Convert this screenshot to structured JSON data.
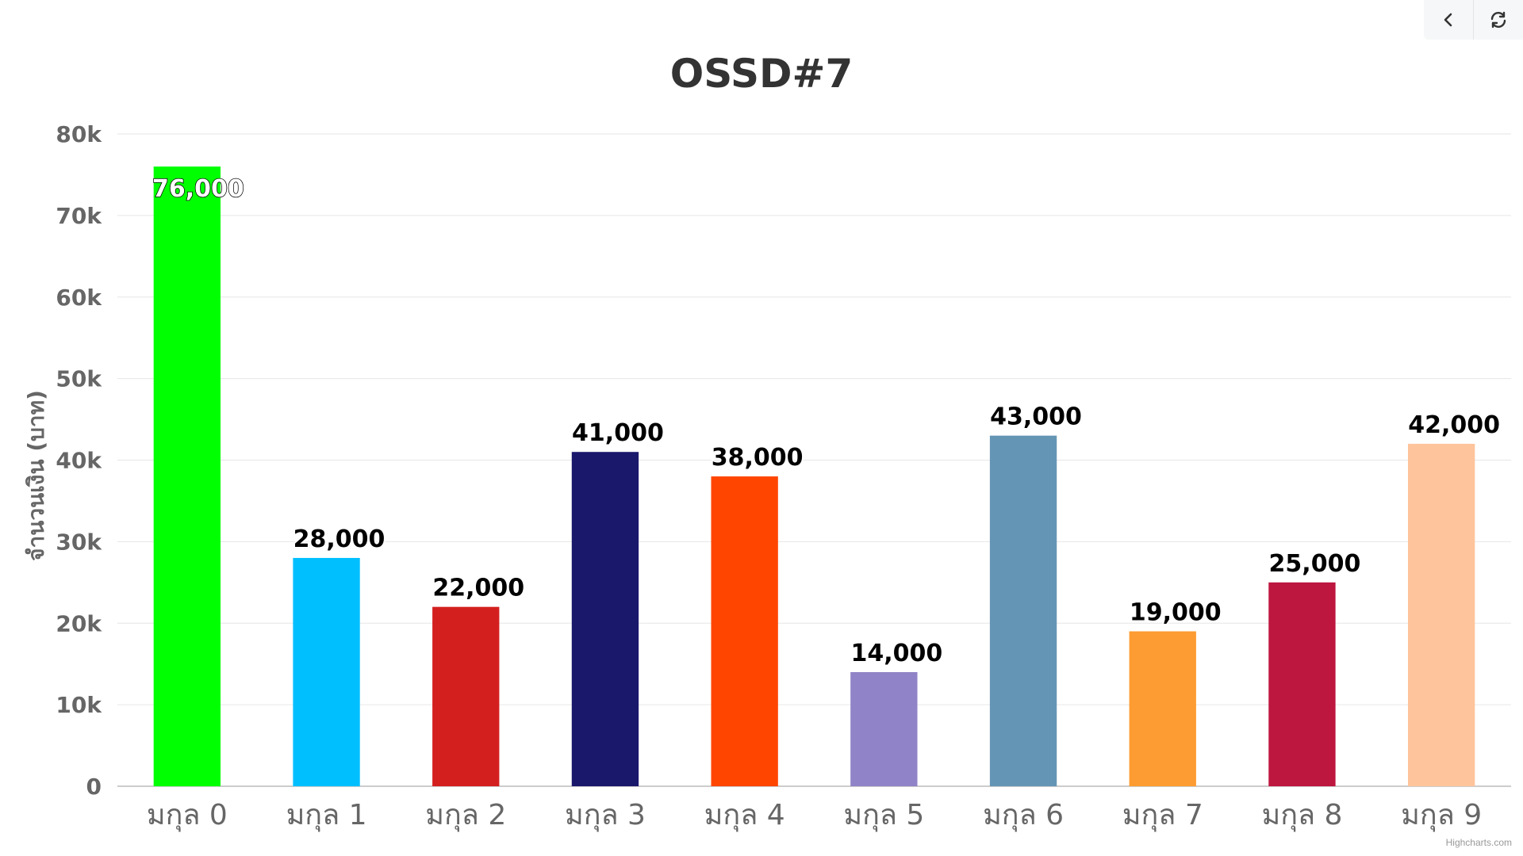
{
  "toolbar": {
    "back_icon": "chevron-left-icon",
    "refresh_icon": "refresh-icon"
  },
  "credits": "Highcharts.com",
  "chart_data": {
    "type": "bar",
    "title": "OSSD#7",
    "xlabel": "",
    "ylabel": "จำนวนเงิน (บาท)",
    "categories": [
      "มกุล 0",
      "มกุล 1",
      "มกุล 2",
      "มกุล 3",
      "มกุล 4",
      "มกุล 5",
      "มกุล 6",
      "มกุล 7",
      "มกุล 8",
      "มกุล 9"
    ],
    "values": [
      76000,
      28000,
      22000,
      41000,
      38000,
      14000,
      43000,
      19000,
      25000,
      42000
    ],
    "value_labels": [
      "76,000",
      "28,000",
      "22,000",
      "41,000",
      "38,000",
      "14,000",
      "43,000",
      "19,000",
      "25,000",
      "42,000"
    ],
    "colors": [
      "#00ff00",
      "#00bfff",
      "#d41f1f",
      "#1a186b",
      "#ff4500",
      "#9183c7",
      "#6595b5",
      "#fd9c32",
      "#bd163f",
      "#fec49b"
    ],
    "ylim": [
      0,
      80000
    ],
    "yticks": [
      "0",
      "10k",
      "20k",
      "30k",
      "40k",
      "50k",
      "60k",
      "70k",
      "80k"
    ],
    "grid": true,
    "legend": "none"
  }
}
